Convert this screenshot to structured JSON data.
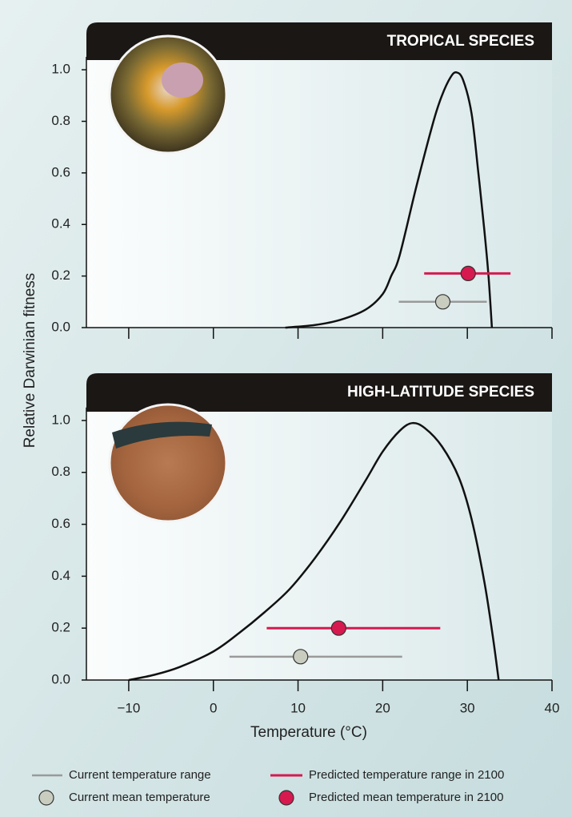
{
  "chart_data": [
    {
      "type": "thermal-performance",
      "title": "TROPICAL SPECIES",
      "ylabel": "Relative Darwinian fitness",
      "xlim": [
        -15,
        40
      ],
      "ylim": [
        0,
        1.05
      ],
      "yticks": [
        {
          "value": 0,
          "label": "0.0"
        },
        0.2,
        0.4,
        0.6,
        0.8,
        {
          "value": 1,
          "label": "1.0"
        }
      ],
      "curve": {
        "color": "#111111",
        "x": [
          8.5,
          12,
          15,
          18,
          20,
          21,
          22,
          24,
          26,
          27,
          28,
          28.7,
          29.5,
          30.5,
          31.3,
          32,
          32.5,
          32.9
        ],
        "values": [
          0,
          0.01,
          0.03,
          0.07,
          0.13,
          0.2,
          0.28,
          0.55,
          0.8,
          0.9,
          0.97,
          0.99,
          0.96,
          0.83,
          0.6,
          0.38,
          0.2,
          0
        ]
      },
      "current": {
        "range": [
          21.9,
          32.3
        ],
        "mean": 27.1,
        "y": 0.1
      },
      "predicted": {
        "range": [
          24.9,
          35.1
        ],
        "mean": 30.1,
        "y": 0.21
      }
    },
    {
      "type": "thermal-performance",
      "title": "HIGH-LATITUDE SPECIES",
      "xlabel": "Temperature (°C)",
      "xlim": [
        -15,
        40
      ],
      "ylim": [
        0,
        1.05
      ],
      "xticks": [
        {
          "value": -10,
          "label": "−10"
        },
        0,
        10,
        20,
        30,
        40
      ],
      "yticks": [
        {
          "value": 0,
          "label": "0.0"
        },
        0.2,
        0.4,
        0.6,
        0.8,
        {
          "value": 1,
          "label": "1.0"
        }
      ],
      "curve": {
        "color": "#111111",
        "x": [
          -10,
          -7,
          -4,
          0,
          3,
          6,
          9,
          12,
          15,
          18,
          20,
          22,
          23.5,
          25,
          27,
          29,
          30.5,
          32,
          33,
          33.7
        ],
        "values": [
          0,
          0.02,
          0.05,
          0.11,
          0.18,
          0.26,
          0.35,
          0.47,
          0.61,
          0.77,
          0.88,
          0.96,
          0.99,
          0.97,
          0.9,
          0.78,
          0.62,
          0.38,
          0.17,
          0
        ]
      },
      "current": {
        "range": [
          1.9,
          22.3
        ],
        "mean": 10.3,
        "y": 0.09
      },
      "predicted": {
        "range": [
          6.3,
          26.8
        ],
        "mean": 14.8,
        "y": 0.2
      }
    }
  ],
  "legend": {
    "current_range": {
      "name": "Current temperature range",
      "color": "#9a9a9a"
    },
    "predicted_range": {
      "name": "Predicted temperature range in 2100",
      "color": "#d6194f"
    },
    "current_mean": {
      "name": "Current mean temperature",
      "color": "#c9cdbf"
    },
    "predicted_mean": {
      "name": "Predicted mean temperature in 2100",
      "color": "#d6194f"
    }
  }
}
